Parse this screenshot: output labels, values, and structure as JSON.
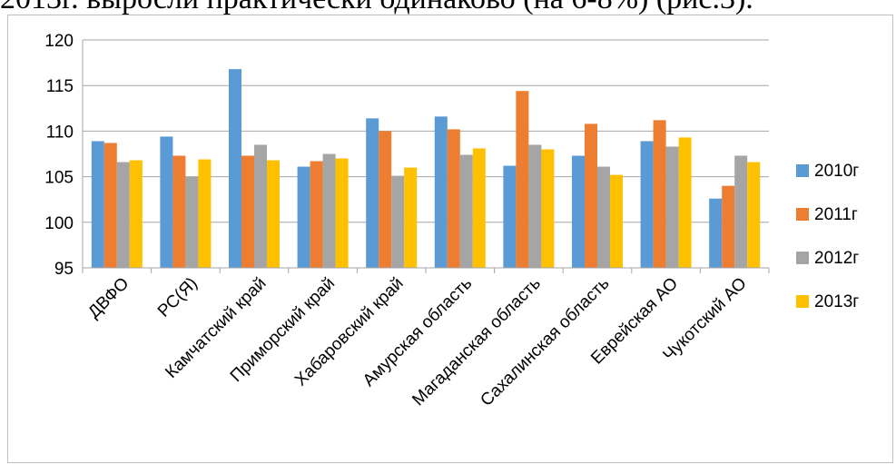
{
  "page": {
    "top_text": "2013г. выросли практически одинаково (на 6-8%) (рис.3)."
  },
  "chart_data": {
    "type": "bar",
    "title": "",
    "xlabel": "",
    "ylabel": "",
    "ylim": [
      95,
      120
    ],
    "yticks": [
      95,
      100,
      105,
      110,
      115,
      120
    ],
    "grid": true,
    "legend_position": "right",
    "categories": [
      "ДВФО",
      "РС(Я)",
      "Камчатский край",
      "Приморский край",
      "Хабаровский край",
      "Амурская область",
      "Магаданская область",
      "Сахалинская область",
      "Еврейская АО",
      "Чукотский АО"
    ],
    "series": [
      {
        "name": "2010г",
        "color": "#5B9BD5",
        "values": [
          108.9,
          109.4,
          116.8,
          106.1,
          111.4,
          111.6,
          106.2,
          107.3,
          108.9,
          102.6
        ]
      },
      {
        "name": "2011г",
        "color": "#ED7D31",
        "values": [
          108.7,
          107.3,
          107.3,
          106.7,
          110.0,
          110.2,
          114.4,
          110.8,
          111.2,
          104.0
        ]
      },
      {
        "name": "2012г",
        "color": "#A5A5A5",
        "values": [
          106.6,
          105.0,
          108.5,
          107.5,
          105.1,
          107.4,
          108.5,
          106.1,
          108.3,
          107.3
        ]
      },
      {
        "name": "2013г",
        "color": "#FFC000",
        "values": [
          106.8,
          106.9,
          106.8,
          107.0,
          106.0,
          108.1,
          108.0,
          105.2,
          109.3,
          106.6
        ]
      }
    ]
  }
}
